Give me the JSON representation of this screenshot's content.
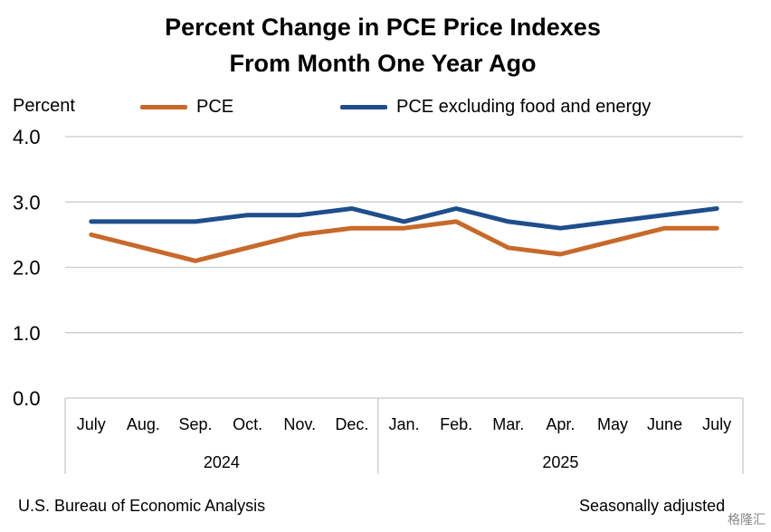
{
  "chart_data": {
    "type": "line",
    "title_line1": "Percent Change in PCE Price Indexes",
    "title_line2": "From Month One Year Ago",
    "ylabel": "Percent",
    "ylim": [
      0,
      4
    ],
    "yticks": [
      "0.0",
      "1.0",
      "2.0",
      "3.0",
      "4.0"
    ],
    "grid": true,
    "legend_position": "top",
    "categories": [
      "July",
      "Aug.",
      "Sep.",
      "Oct.",
      "Nov.",
      "Dec.",
      "Jan.",
      "Feb.",
      "Mar.",
      "Apr.",
      "May",
      "June",
      "July"
    ],
    "year_groups": [
      {
        "label": "2024",
        "count": 6
      },
      {
        "label": "2025",
        "count": 7
      }
    ],
    "series": [
      {
        "name": "PCE",
        "color": "#c8692b",
        "values": [
          2.5,
          2.3,
          2.1,
          2.3,
          2.5,
          2.6,
          2.6,
          2.7,
          2.3,
          2.2,
          2.4,
          2.6,
          2.6
        ]
      },
      {
        "name": "PCE excluding food and energy",
        "color": "#1f4e8c",
        "values": [
          2.7,
          2.7,
          2.7,
          2.8,
          2.8,
          2.9,
          2.7,
          2.9,
          2.7,
          2.6,
          2.7,
          2.8,
          2.9
        ]
      }
    ]
  },
  "footer": {
    "source": "U.S. Bureau of Economic Analysis",
    "note": "Seasonally adjusted"
  },
  "watermark": "格隆汇"
}
